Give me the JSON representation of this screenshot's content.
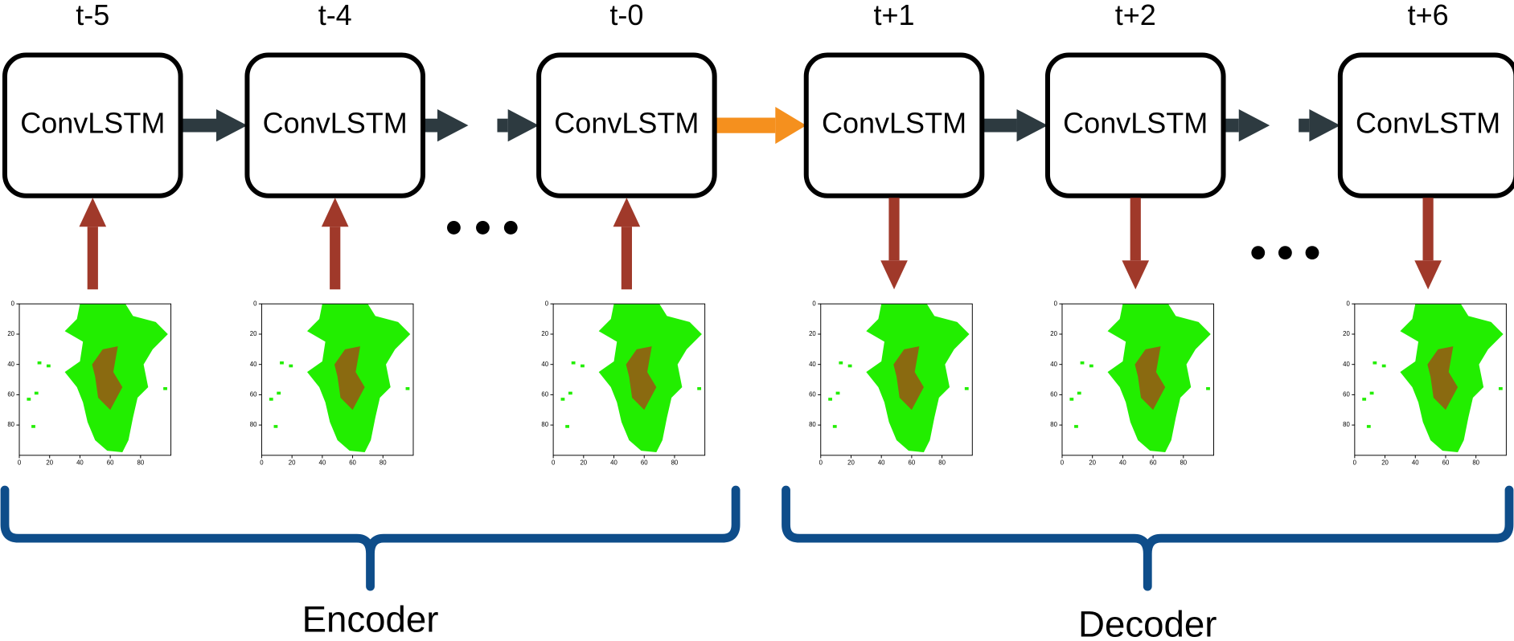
{
  "nodes": [
    {
      "time": "t-5",
      "label": "ConvLSTM"
    },
    {
      "time": "t-4",
      "label": "ConvLSTM"
    },
    {
      "time": "t-0",
      "label": "ConvLSTM"
    },
    {
      "time": "t+1",
      "label": "ConvLSTM"
    },
    {
      "time": "t+2",
      "label": "ConvLSTM"
    },
    {
      "time": "t+6",
      "label": "ConvLSTM"
    }
  ],
  "plot_ticks": {
    "x": [
      0,
      20,
      40,
      60,
      80
    ],
    "y": [
      0,
      20,
      40,
      60,
      80
    ]
  },
  "groups": [
    {
      "label": "Encoder"
    },
    {
      "label": "Decoder"
    }
  ]
}
